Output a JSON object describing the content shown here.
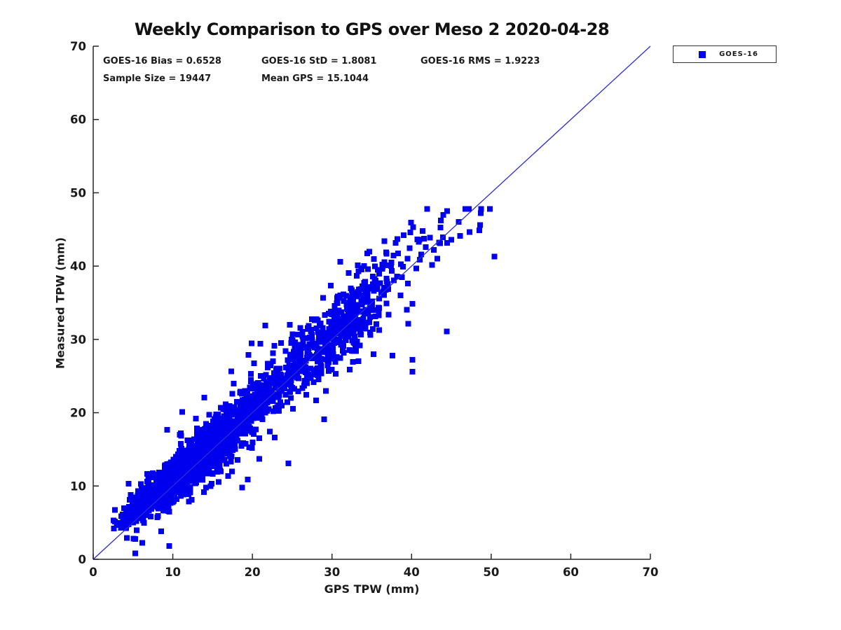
{
  "figure": {
    "background": "#FFFFFF",
    "text_color": "#1A1A1A",
    "spine_color": "#262626"
  },
  "chart_data": {
    "type": "scatter",
    "title": "Weekly Comparison to GPS over Meso 2 2020-04-28",
    "xlabel": "GPS TPW (mm)",
    "ylabel": "Measured TPW (mm)",
    "xlim": [
      0,
      70
    ],
    "ylim": [
      0,
      70
    ],
    "x_ticks": [
      0,
      10,
      20,
      30,
      40,
      50,
      60,
      70
    ],
    "y_ticks": [
      0,
      10,
      20,
      30,
      40,
      50,
      60,
      70
    ],
    "grid": false,
    "stats_lines": [
      "GOES-16 Bias = 0.6528",
      "GOES-16 StD = 1.8081",
      "GOES-16 RMS = 1.9223",
      "Sample Size = 19447",
      "Mean GPS = 15.1044"
    ],
    "stats": {
      "bias": 0.6528,
      "std": 1.8081,
      "rms": 1.9223,
      "sample_size": 19447,
      "mean_gps": 15.1044
    },
    "legend": {
      "position": "outside-upper-right",
      "entries": [
        {
          "label": "GOES-16",
          "marker": "square",
          "color": "#0000EE"
        }
      ]
    },
    "reference_line": {
      "from": [
        0,
        0
      ],
      "to": [
        70,
        70
      ],
      "color": "#2B2BD5",
      "width": 1.3
    },
    "series": [
      {
        "name": "GOES-16",
        "marker": "square",
        "marker_size_px": 8,
        "color": "#0000EE",
        "n_points_actual": 19447,
        "x_range_observed": [
          1.8,
          50.6
        ],
        "y_range_observed": [
          4.2,
          47.2
        ],
        "relation": "y approx x + bias with scatter growing with x"
      }
    ],
    "synthetic_render": {
      "note": "19447 heavily-overplotted points; rendered with seeded synthetic cloud matching shown stats",
      "seed": 421,
      "n_points": 2600,
      "x_mixture": {
        "lognormal_frac": 0.88,
        "mu_log": 2.526,
        "sigma_log": 0.5,
        "cluster_mu": 31,
        "cluster_sigma": 4,
        "x_min": 1.8,
        "x_max": 50.6
      },
      "noise": {
        "bias": 0.65,
        "base_spread": 0.85,
        "spread_slope": 0.055,
        "wide_frac": 0.06,
        "wide_mult": 2.2,
        "low_x_skew_below": 8,
        "y_cap": 47.8
      },
      "outliers": [
        [
          18.7,
          9.8
        ],
        [
          40.1,
          27.2
        ],
        [
          40.1,
          25.6
        ],
        [
          37.6,
          27.8
        ],
        [
          35.2,
          28.0
        ],
        [
          33.0,
          28.4
        ],
        [
          30.6,
          27.6
        ],
        [
          21.6,
          31.9
        ],
        [
          21.0,
          29.4
        ],
        [
          24.7,
          32.0
        ],
        [
          19.5,
          27.9
        ],
        [
          44.0,
          47.0
        ],
        [
          48.7,
          47.2
        ],
        [
          48.6,
          45.6
        ],
        [
          48.5,
          44.9
        ],
        [
          38.2,
          43.7
        ],
        [
          36.6,
          43.4
        ],
        [
          41.4,
          44.8
        ],
        [
          42.3,
          43.9
        ],
        [
          40.6,
          39.7
        ],
        [
          41.2,
          41.6
        ],
        [
          43.6,
          43.1
        ],
        [
          46.1,
          44.1
        ],
        [
          50.4,
          41.3
        ],
        [
          44.4,
          31.1
        ],
        [
          40.9,
          43.3
        ],
        [
          39.5,
          41.0
        ],
        [
          38.8,
          38.5
        ],
        [
          42.8,
          42.2
        ],
        [
          45.0,
          43.6
        ],
        [
          37.0,
          40.1
        ],
        [
          35.5,
          38.0
        ],
        [
          36.2,
          36.4
        ],
        [
          34.3,
          35.1
        ],
        [
          39.0,
          44.2
        ],
        [
          40.2,
          45.3
        ],
        [
          41.8,
          42.6
        ]
      ]
    }
  }
}
